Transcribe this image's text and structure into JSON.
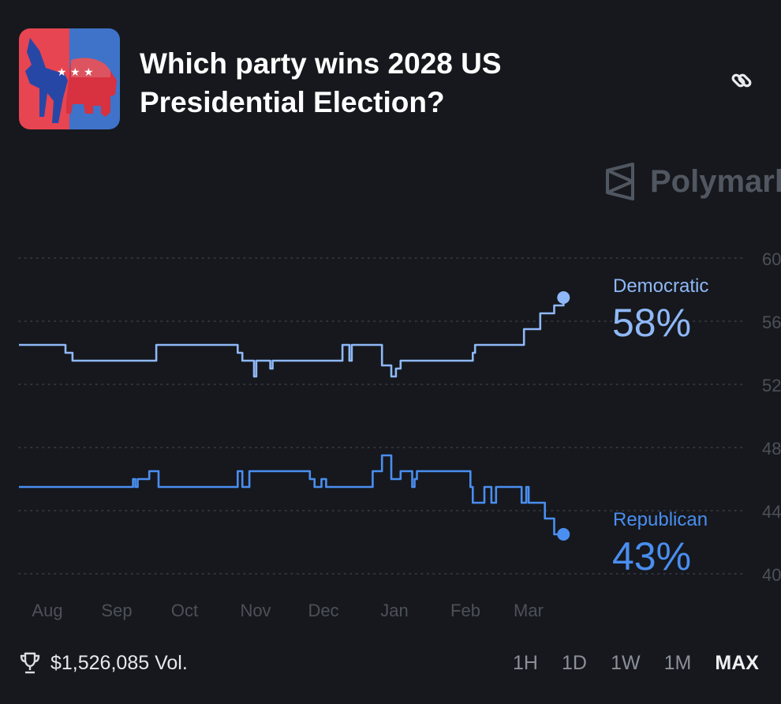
{
  "header": {
    "title": "Which party wins 2028 US Presidential Election?",
    "icons": {
      "logo": "donkey-elephant-logo",
      "link": "link-icon"
    }
  },
  "watermark": {
    "text": "Polymark"
  },
  "colors": {
    "background": "#16181d",
    "democratic": "#8fb8f7",
    "republican": "#4a8ef0",
    "grid": "#3a3e46",
    "axis_text": "#4c5158"
  },
  "chart_data": {
    "type": "line",
    "title": "",
    "xlabel": "",
    "ylabel": "",
    "x_ticks": [
      "Aug",
      "Sep",
      "Oct",
      "Nov",
      "Dec",
      "Jan",
      "Feb",
      "Mar"
    ],
    "y_ticks": [
      "40",
      "44",
      "48",
      "52",
      "56",
      "60"
    ],
    "ylim": [
      40,
      60
    ],
    "grid": true,
    "y_axis_side": "right",
    "series": [
      {
        "name": "Democratic",
        "current_label": "58%",
        "color": "#8fb8f7",
        "points": [
          [
            "2024-07-25",
            54.5
          ],
          [
            "2024-08-14",
            54.0
          ],
          [
            "2024-08-17",
            53.5
          ],
          [
            "2024-09-22",
            54.5
          ],
          [
            "2024-10-27",
            54.0
          ],
          [
            "2024-10-29",
            53.5
          ],
          [
            "2024-11-03",
            52.5
          ],
          [
            "2024-11-04",
            53.5
          ],
          [
            "2024-11-10",
            53.0
          ],
          [
            "2024-11-11",
            53.5
          ],
          [
            "2024-12-11",
            54.5
          ],
          [
            "2024-12-14",
            53.5
          ],
          [
            "2024-12-15",
            54.5
          ],
          [
            "2024-12-28",
            53.2
          ],
          [
            "2025-01-01",
            52.5
          ],
          [
            "2025-01-03",
            53.0
          ],
          [
            "2025-01-05",
            53.5
          ],
          [
            "2025-02-05",
            54.0
          ],
          [
            "2025-02-06",
            54.5
          ],
          [
            "2025-02-27",
            55.5
          ],
          [
            "2025-03-06",
            56.5
          ],
          [
            "2025-03-12",
            57.0
          ],
          [
            "2025-03-16",
            57.5
          ]
        ]
      },
      {
        "name": "Republican",
        "current_label": "43%",
        "color": "#4a8ef0",
        "points": [
          [
            "2024-07-25",
            45.5
          ],
          [
            "2024-09-12",
            46.0
          ],
          [
            "2024-09-13",
            45.5
          ],
          [
            "2024-09-14",
            46.0
          ],
          [
            "2024-09-19",
            46.5
          ],
          [
            "2024-09-23",
            45.5
          ],
          [
            "2024-10-27",
            46.5
          ],
          [
            "2024-10-29",
            45.5
          ],
          [
            "2024-11-01",
            46.5
          ],
          [
            "2024-11-27",
            46.0
          ],
          [
            "2024-11-29",
            45.5
          ],
          [
            "2024-12-02",
            46.0
          ],
          [
            "2024-12-04",
            45.5
          ],
          [
            "2024-12-24",
            46.5
          ],
          [
            "2024-12-28",
            47.5
          ],
          [
            "2025-01-01",
            46.0
          ],
          [
            "2025-01-05",
            46.5
          ],
          [
            "2025-01-10",
            45.5
          ],
          [
            "2025-01-11",
            46.0
          ],
          [
            "2025-01-12",
            46.5
          ],
          [
            "2025-02-04",
            45.5
          ],
          [
            "2025-02-05",
            44.5
          ],
          [
            "2025-02-10",
            45.5
          ],
          [
            "2025-02-13",
            44.5
          ],
          [
            "2025-02-15",
            45.5
          ],
          [
            "2025-02-26",
            44.5
          ],
          [
            "2025-02-28",
            45.5
          ],
          [
            "2025-03-01",
            44.5
          ],
          [
            "2025-03-08",
            43.5
          ],
          [
            "2025-03-12",
            42.5
          ],
          [
            "2025-03-16",
            42.5
          ]
        ]
      }
    ]
  },
  "footer": {
    "volume": "$1,526,085 Vol.",
    "volume_icon": "trophy-icon",
    "ranges": [
      "1H",
      "1D",
      "1W",
      "1M",
      "MAX"
    ],
    "active_range": "MAX"
  }
}
